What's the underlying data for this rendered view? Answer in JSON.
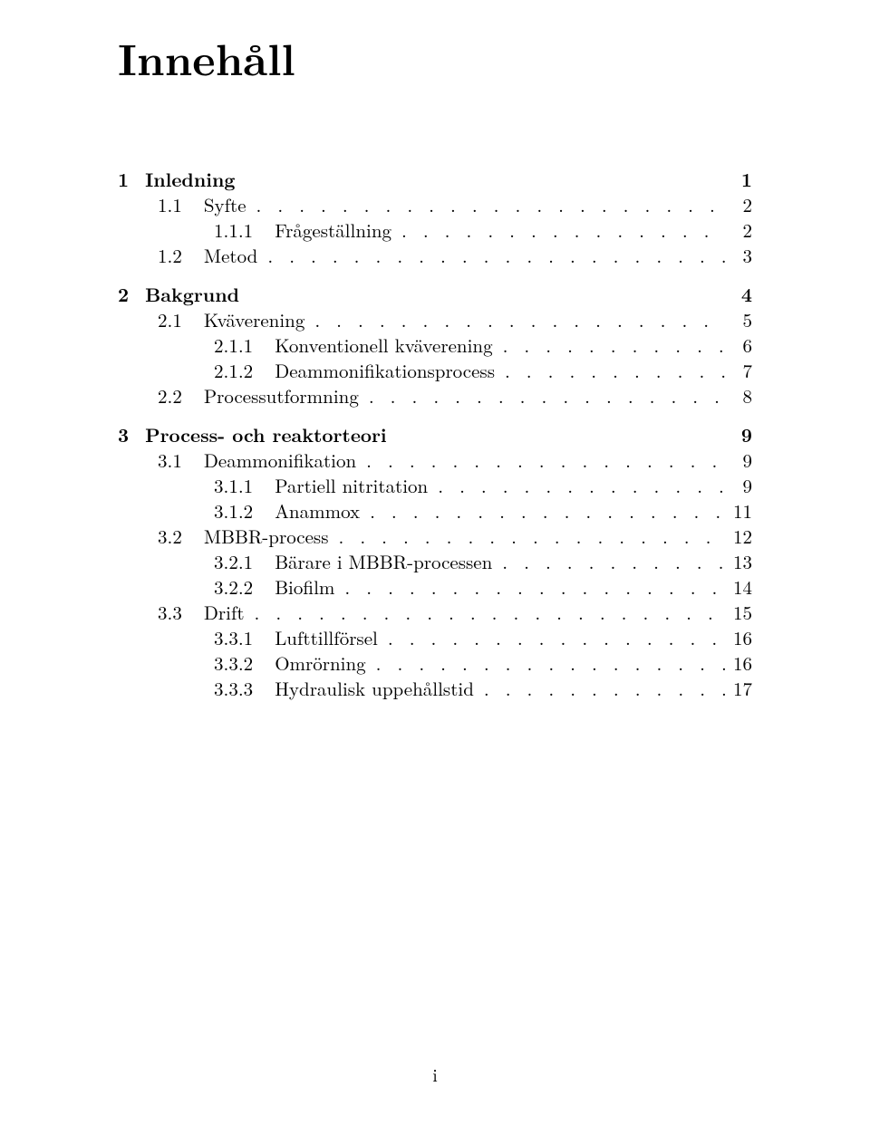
{
  "title": "Innehåll",
  "page_number": "i",
  "colors": {
    "text": "#000000",
    "background": "#ffffff"
  },
  "fontsize": {
    "title": 48,
    "body": 21,
    "foot": 20
  },
  "entries": [
    {
      "level": 1,
      "chapter": true,
      "num": "1",
      "label": "Inledning",
      "page": "1",
      "dots": false
    },
    {
      "level": 2,
      "num": "1.1",
      "label": "Syfte",
      "page": "2",
      "dots": true
    },
    {
      "level": 3,
      "num": "1.1.1",
      "label": "Frågeställning",
      "page": "2",
      "dots": true
    },
    {
      "level": 2,
      "num": "1.2",
      "label": "Metod",
      "page": "3",
      "dots": true
    },
    {
      "level": 1,
      "chapter": true,
      "gap": true,
      "num": "2",
      "label": "Bakgrund",
      "page": "4",
      "dots": false
    },
    {
      "level": 2,
      "num": "2.1",
      "label": "Kväverening",
      "page": "5",
      "dots": true
    },
    {
      "level": 3,
      "num": "2.1.1",
      "label": "Konventionell kväverening",
      "page": "6",
      "dots": true
    },
    {
      "level": 3,
      "num": "2.1.2",
      "label": "Deammonifikationsprocess",
      "page": "7",
      "dots": true
    },
    {
      "level": 2,
      "num": "2.2",
      "label": "Processutformning",
      "page": "8",
      "dots": true
    },
    {
      "level": 1,
      "chapter": true,
      "gap": true,
      "num": "3",
      "label": "Process- och reaktorteori",
      "page": "9",
      "dots": false
    },
    {
      "level": 2,
      "num": "3.1",
      "label": "Deammonifikation",
      "page": "9",
      "dots": true
    },
    {
      "level": 3,
      "num": "3.1.1",
      "label": "Partiell nitritation",
      "page": "9",
      "dots": true
    },
    {
      "level": 3,
      "num": "3.1.2",
      "label": "Anammox",
      "page": "11",
      "dots": true
    },
    {
      "level": 2,
      "num": "3.2",
      "label": "MBBR-process",
      "page": "12",
      "dots": true
    },
    {
      "level": 3,
      "num": "3.2.1",
      "label": "Bärare i MBBR-processen",
      "page": "13",
      "dots": true
    },
    {
      "level": 3,
      "num": "3.2.2",
      "label": "Biofilm",
      "page": "14",
      "dots": true
    },
    {
      "level": 2,
      "num": "3.3",
      "label": "Drift",
      "page": "15",
      "dots": true
    },
    {
      "level": 3,
      "num": "3.3.1",
      "label": "Lufttillförsel",
      "page": "16",
      "dots": true
    },
    {
      "level": 3,
      "num": "3.3.2",
      "label": "Omrörning",
      "page": "16",
      "dots": true
    },
    {
      "level": 3,
      "num": "3.3.3",
      "label": "Hydraulisk uppehållstid",
      "page": "17",
      "dots": true
    }
  ]
}
